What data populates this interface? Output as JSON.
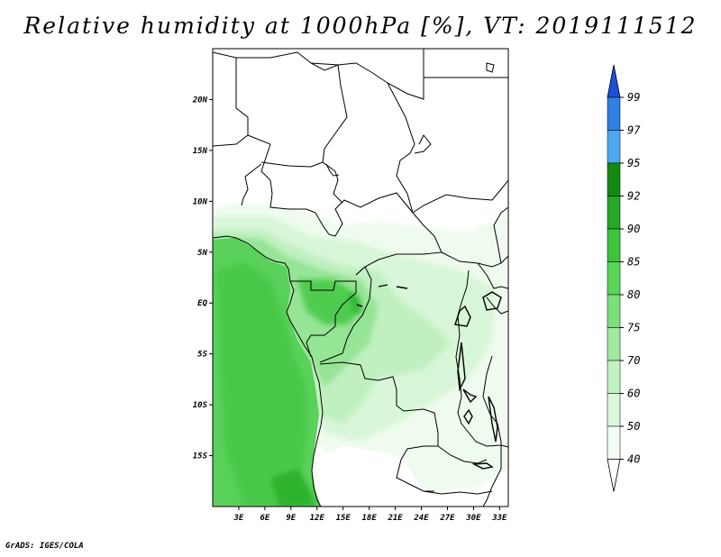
{
  "title": "Relative humidity at 1000hPa [%], VT: 2019111512",
  "credit": "GrADS: IGES/COLA",
  "map": {
    "lon_range": [
      0,
      34
    ],
    "lat_range": [
      -20,
      25
    ],
    "lat_ticks": [
      {
        "value": 20,
        "label": "20N"
      },
      {
        "value": 15,
        "label": "15N"
      },
      {
        "value": 10,
        "label": "10N"
      },
      {
        "value": 5,
        "label": "5N"
      },
      {
        "value": 0,
        "label": "EQ"
      },
      {
        "value": -5,
        "label": "5S"
      },
      {
        "value": -10,
        "label": "10S"
      },
      {
        "value": -15,
        "label": "15S"
      }
    ],
    "lon_ticks": [
      {
        "value": 3,
        "label": "3E"
      },
      {
        "value": 6,
        "label": "6E"
      },
      {
        "value": 9,
        "label": "9E"
      },
      {
        "value": 12,
        "label": "12E"
      },
      {
        "value": 15,
        "label": "15E"
      },
      {
        "value": 18,
        "label": "18E"
      },
      {
        "value": 21,
        "label": "21E"
      },
      {
        "value": 24,
        "label": "24E"
      },
      {
        "value": 27,
        "label": "27E"
      },
      {
        "value": 30,
        "label": "30E"
      },
      {
        "value": 33,
        "label": "33E"
      }
    ]
  },
  "colorbar": {
    "levels": [
      "99",
      "97",
      "95",
      "92",
      "90",
      "85",
      "80",
      "75",
      "70",
      "60",
      "50",
      "40"
    ],
    "colors": [
      "#1e50d6",
      "#2f7fe6",
      "#4ea8f0",
      "#128a12",
      "#26a826",
      "#3cc43c",
      "#57d657",
      "#7ae07a",
      "#a0eaa0",
      "#c2f2c2",
      "#dcf8dc",
      "#f0fdf0",
      "#ffffff"
    ]
  }
}
